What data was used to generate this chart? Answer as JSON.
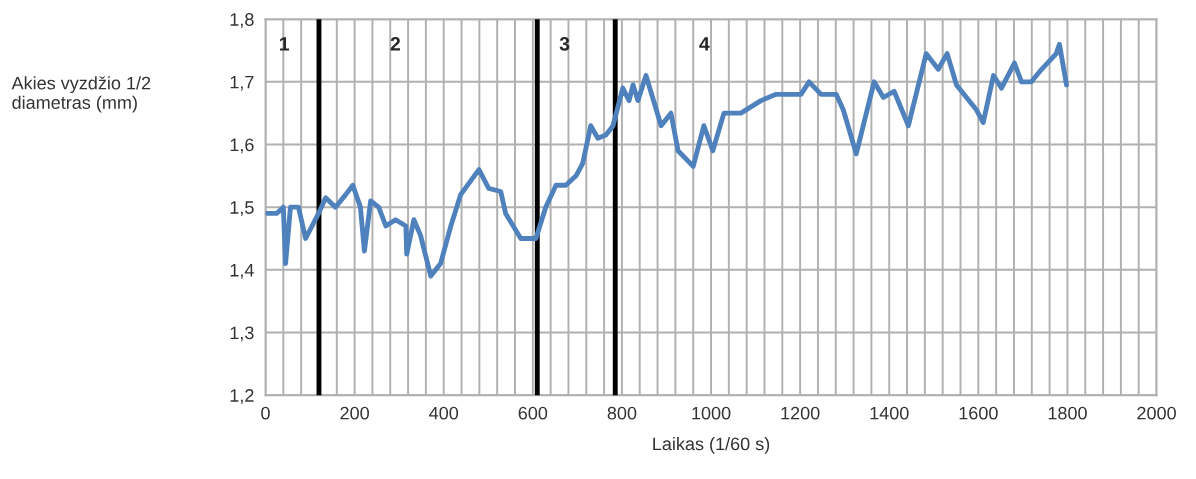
{
  "chart_data": {
    "type": "line",
    "xlabel": "Laikas (1/60 s)",
    "ylabel": "Akies vyzdžio 1/2\ndiametras (mm)",
    "series": [
      {
        "color": "#4f81bd",
        "x": [
          4,
          25,
          40,
          45,
          56,
          74,
          90,
          119,
          135,
          157,
          180,
          196,
          213,
          222,
          236,
          254,
          270,
          292,
          315,
          317,
          333,
          348,
          371,
          393,
          416,
          438,
          479,
          501,
          528,
          539,
          573,
          607,
          629,
          652,
          674,
          697,
          712,
          730,
          746,
          764,
          780,
          802,
          816,
          825,
          836,
          854,
          888,
          910,
          926,
          960,
          984,
          1004,
          1029,
          1067,
          1112,
          1146,
          1202,
          1220,
          1247,
          1281,
          1297,
          1326,
          1366,
          1387,
          1411,
          1443,
          1483,
          1510,
          1530,
          1551,
          1596,
          1611,
          1634,
          1652,
          1681,
          1697,
          1719,
          1742,
          1775,
          1782,
          1798
        ],
        "values": [
          1.49,
          1.49,
          1.5,
          1.41,
          1.5,
          1.5,
          1.45,
          1.49,
          1.515,
          1.5,
          1.52,
          1.535,
          1.5,
          1.43,
          1.51,
          1.5,
          1.47,
          1.48,
          1.47,
          1.425,
          1.48,
          1.455,
          1.39,
          1.41,
          1.47,
          1.52,
          1.56,
          1.53,
          1.525,
          1.49,
          1.45,
          1.45,
          1.5,
          1.535,
          1.535,
          1.55,
          1.57,
          1.63,
          1.61,
          1.615,
          1.63,
          1.69,
          1.67,
          1.695,
          1.67,
          1.71,
          1.63,
          1.65,
          1.59,
          1.565,
          1.63,
          1.59,
          1.65,
          1.65,
          1.67,
          1.68,
          1.68,
          1.7,
          1.68,
          1.68,
          1.655,
          1.585,
          1.7,
          1.675,
          1.685,
          1.63,
          1.745,
          1.72,
          1.745,
          1.695,
          1.655,
          1.635,
          1.71,
          1.69,
          1.73,
          1.7,
          1.7,
          1.72,
          1.745,
          1.76,
          1.695
        ]
      }
    ],
    "xlim": [
      0,
      2000
    ],
    "xticks": [
      0,
      {
        "value": 40,
        "label": null
      },
      {
        "value": 80,
        "label": null
      },
      {
        "value": 120,
        "label": null
      },
      {
        "value": 160,
        "label": null
      },
      200,
      {
        "value": 240,
        "label": null
      },
      {
        "value": 280,
        "label": null
      },
      {
        "value": 320,
        "label": null
      },
      {
        "value": 360,
        "label": null
      },
      400,
      {
        "value": 440,
        "label": null
      },
      {
        "value": 480,
        "label": null
      },
      {
        "value": 520,
        "label": null
      },
      {
        "value": 560,
        "label": null
      },
      600,
      {
        "value": 640,
        "label": null
      },
      {
        "value": 680,
        "label": null
      },
      {
        "value": 720,
        "label": null
      },
      {
        "value": 760,
        "label": null
      },
      800,
      {
        "value": 840,
        "label": null
      },
      {
        "value": 880,
        "label": null
      },
      {
        "value": 920,
        "label": null
      },
      {
        "value": 960,
        "label": null
      },
      1000,
      {
        "value": 1040,
        "label": null
      },
      {
        "value": 1080,
        "label": null
      },
      {
        "value": 1120,
        "label": null
      },
      {
        "value": 1160,
        "label": null
      },
      1200,
      {
        "value": 1240,
        "label": null
      },
      {
        "value": 1280,
        "label": null
      },
      {
        "value": 1320,
        "label": null
      },
      {
        "value": 1360,
        "label": null
      },
      1400,
      {
        "value": 1440,
        "label": null
      },
      {
        "value": 1480,
        "label": null
      },
      {
        "value": 1520,
        "label": null
      },
      {
        "value": 1560,
        "label": null
      },
      1600,
      {
        "value": 1640,
        "label": null
      },
      {
        "value": 1680,
        "label": null
      },
      {
        "value": 1720,
        "label": null
      },
      {
        "value": 1760,
        "label": null
      },
      1800,
      {
        "value": 1840,
        "label": null
      },
      {
        "value": 1880,
        "label": null
      },
      {
        "value": 1920,
        "label": null
      },
      {
        "value": 1960,
        "label": null
      },
      2000
    ],
    "ylim": [
      1.2,
      1.8
    ],
    "yticks": [
      {
        "value": 1.2,
        "label": "1,2"
      },
      {
        "value": 1.3,
        "label": "1,3"
      },
      {
        "value": 1.4,
        "label": "1,4"
      },
      {
        "value": 1.5,
        "label": "1,5"
      },
      {
        "value": 1.6,
        "label": "1,6"
      },
      {
        "value": 1.7,
        "label": "1,7"
      },
      {
        "value": 1.8,
        "label": "1,8"
      }
    ],
    "grid": true,
    "legend": false,
    "line_style": "solid",
    "marker": "none",
    "ref_lines": [
      {
        "axis": "x",
        "value": 120,
        "color": "#000000",
        "line_style": "solid"
      },
      {
        "axis": "x",
        "value": 610,
        "color": "#000000",
        "line_style": "solid"
      },
      {
        "axis": "x",
        "value": 785,
        "color": "#000000",
        "line_style": "solid"
      }
    ],
    "annotations": [
      "1",
      "2",
      "3",
      "4"
    ]
  }
}
